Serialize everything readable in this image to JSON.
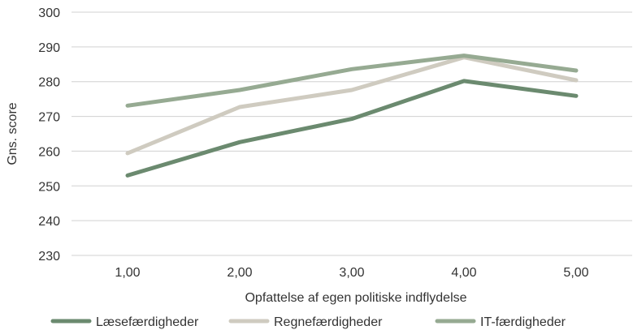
{
  "chart_data": {
    "type": "line",
    "x": [
      "1,00",
      "2,00",
      "3,00",
      "4,00",
      "5,00"
    ],
    "xlabel": "Opfattelse af egen politiske indflydelse",
    "ylabel": "Gns. score",
    "ylim": [
      230,
      300
    ],
    "yticks": [
      230,
      240,
      250,
      260,
      270,
      280,
      290,
      300
    ],
    "grid": "horizontal",
    "legend_position": "bottom",
    "series": [
      {
        "name": "Læsefærdigheder",
        "color": "#6b8a6f",
        "values": [
          253,
          262.6,
          269.3,
          280.2,
          275.9
        ]
      },
      {
        "name": "Regnefærdigheder",
        "color": "#cfcbc0",
        "values": [
          259.4,
          272.7,
          277.6,
          287,
          280.4
        ]
      },
      {
        "name": "IT-færdigheder",
        "color": "#96aa92",
        "values": [
          273.1,
          277.6,
          283.6,
          287.5,
          283.2
        ]
      }
    ]
  }
}
